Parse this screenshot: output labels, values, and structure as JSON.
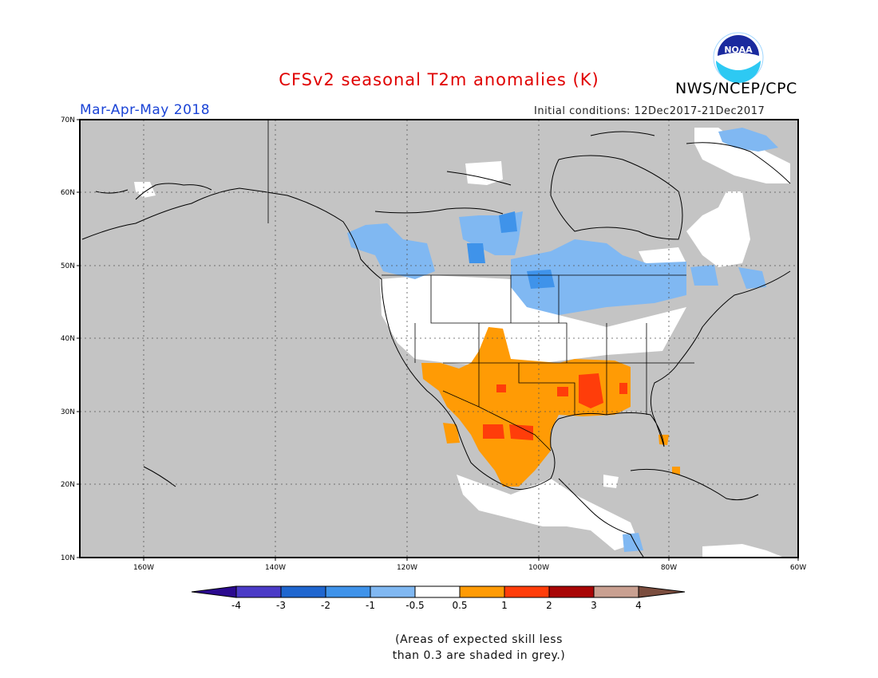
{
  "header": {
    "title": "CFSv2 seasonal T2m anomalies (K)",
    "agency": "NWS/NCEP/CPC",
    "season": "Mar-Apr-May 2018",
    "initial_conditions": "Initial conditions: 12Dec2017-21Dec2017",
    "logo_text": "NOAA"
  },
  "axes": {
    "lat_labels": [
      "70N",
      "60N",
      "50N",
      "40N",
      "30N",
      "20N",
      "10N"
    ],
    "lon_labels": [
      "160W",
      "140W",
      "120W",
      "100W",
      "80W",
      "60W"
    ]
  },
  "legend": {
    "labels": [
      "-4",
      "-3",
      "-2",
      "-1",
      "-0.5",
      "0.5",
      "1",
      "2",
      "3",
      "4"
    ],
    "colors": [
      "#2b0a8f",
      "#4b3bc7",
      "#1f66cf",
      "#3f93ea",
      "#80b8f2",
      "#ffffff",
      "#ff9b05",
      "#ff3d0a",
      "#a80505",
      "#c9a091",
      "#7b4d3e"
    ]
  },
  "footnote": {
    "line1": "(Areas of expected skill less",
    "line2": "than 0.3 are shaded in grey.)"
  },
  "colors": {
    "title": "#e00000",
    "season": "#1b44d6",
    "skill_grey": "#c4c4c4",
    "warm": "#ff9b05",
    "warmer": "#ff3d0a",
    "cool": "#80b8f2",
    "cooler": "#3f93ea"
  }
}
